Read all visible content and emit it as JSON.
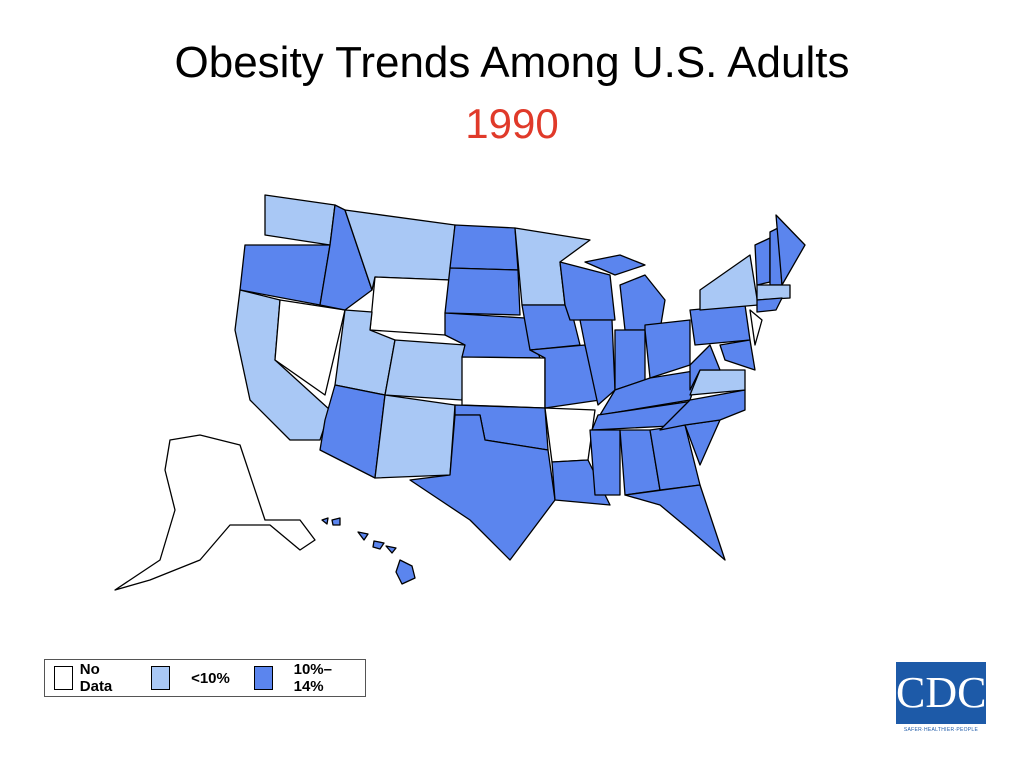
{
  "header": {
    "title": "Obesity Trends Among U.S. Adults",
    "subtitle": "1990"
  },
  "legend": [
    {
      "label": "No Data",
      "color": "#ffffff"
    },
    {
      "label": "<10%",
      "color": "#a9c8f5"
    },
    {
      "label": "10%–14%",
      "color": "#5b85ee"
    }
  ],
  "logo": {
    "text": "CDC",
    "tagline": "SAFER·HEALTHIER·PEOPLE"
  }
}
